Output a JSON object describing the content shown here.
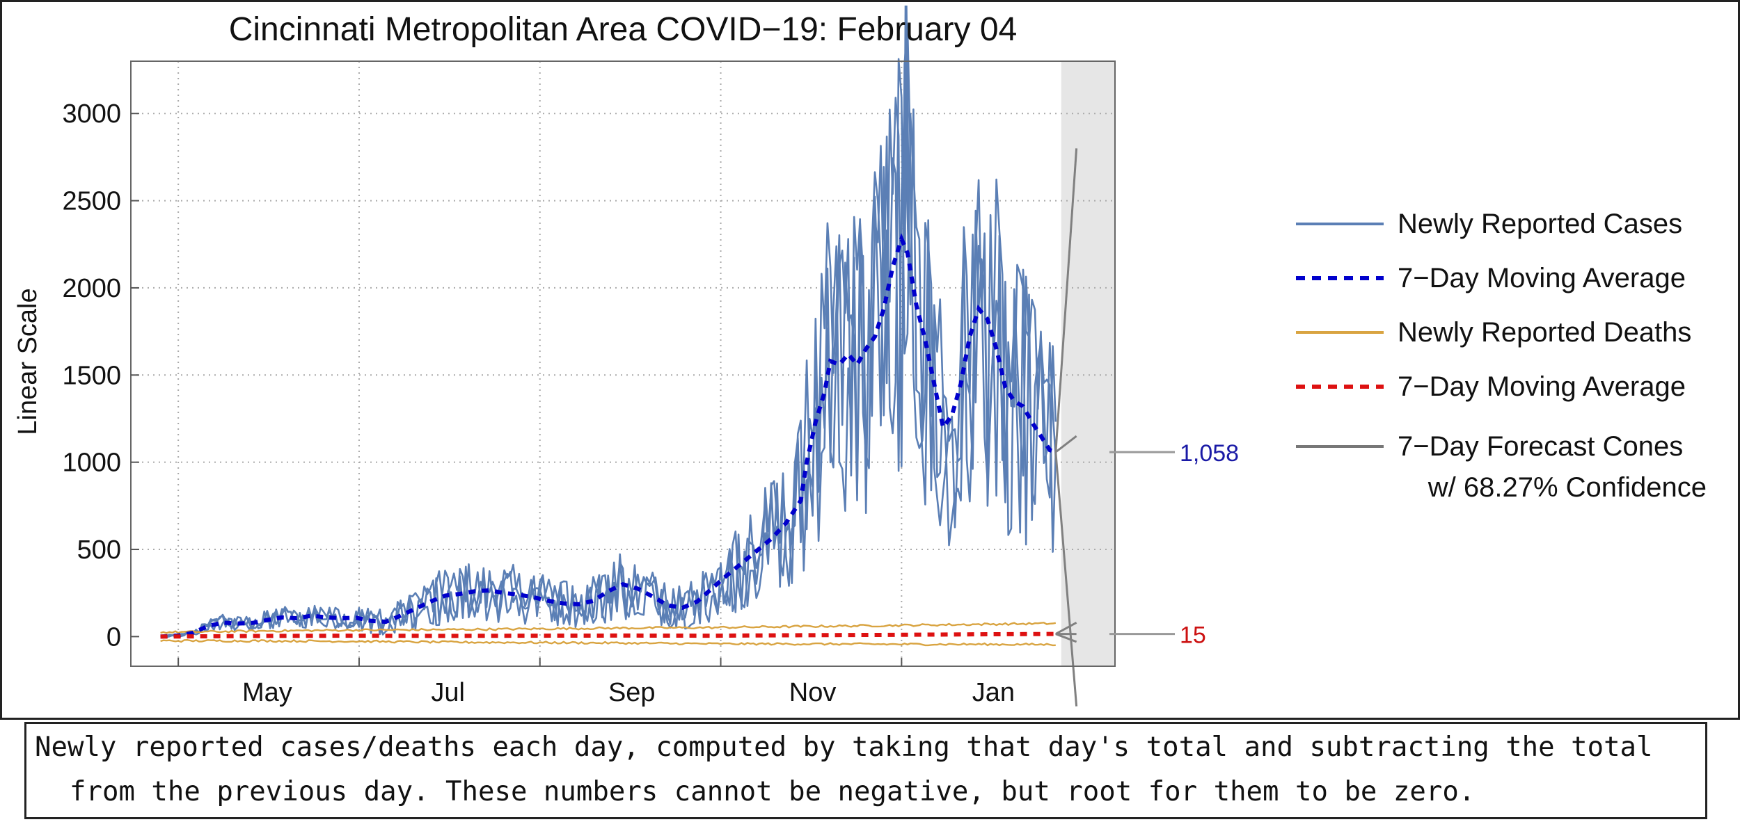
{
  "chart_data": {
    "type": "line",
    "title": "Cincinnati Metropolitan Area COVID−19: February 04",
    "ylabel": "Linear Scale",
    "xlabel": "",
    "ylim": [
      -170,
      3300
    ],
    "yticks": [
      0,
      500,
      1000,
      1500,
      2000,
      2500,
      3000
    ],
    "x_range_days": [
      -16,
      316
    ],
    "month_ticks": [
      {
        "label": "May",
        "day": 30
      },
      {
        "label": "Jul",
        "day": 91
      },
      {
        "label": "Sep",
        "day": 153
      },
      {
        "label": "Nov",
        "day": 214
      },
      {
        "label": "Jan",
        "day": 275
      }
    ],
    "minor_ticks_days": [
      0,
      61,
      122,
      183,
      244
    ],
    "grid": true,
    "series": [
      {
        "name": "Newly Reported Cases",
        "color": "#5b7fb5",
        "band_color": "#dbe4f0",
        "points": [
          [
            -6,
            0
          ],
          [
            0,
            8
          ],
          [
            5,
            25
          ],
          [
            8,
            60
          ],
          [
            12,
            110
          ],
          [
            15,
            95
          ],
          [
            18,
            70
          ],
          [
            22,
            100
          ],
          [
            25,
            75
          ],
          [
            30,
            110
          ],
          [
            35,
            120
          ],
          [
            40,
            95
          ],
          [
            45,
            130
          ],
          [
            50,
            110
          ],
          [
            55,
            100
          ],
          [
            60,
            120
          ],
          [
            65,
            95
          ],
          [
            70,
            85
          ],
          [
            75,
            130
          ],
          [
            80,
            170
          ],
          [
            85,
            200
          ],
          [
            90,
            230
          ],
          [
            95,
            245
          ],
          [
            100,
            270
          ],
          [
            105,
            290
          ],
          [
            110,
            260
          ],
          [
            115,
            250
          ],
          [
            120,
            230
          ],
          [
            125,
            200
          ],
          [
            130,
            190
          ],
          [
            135,
            180
          ],
          [
            140,
            200
          ],
          [
            145,
            250
          ],
          [
            150,
            320
          ],
          [
            155,
            290
          ],
          [
            160,
            240
          ],
          [
            165,
            180
          ],
          [
            170,
            160
          ],
          [
            175,
            190
          ],
          [
            180,
            260
          ],
          [
            185,
            340
          ],
          [
            190,
            420
          ],
          [
            195,
            500
          ],
          [
            200,
            600
          ],
          [
            205,
            700
          ],
          [
            210,
            820
          ],
          [
            212,
            1000
          ],
          [
            215,
            1250
          ],
          [
            218,
            1450
          ],
          [
            220,
            1600
          ],
          [
            223,
            1550
          ],
          [
            226,
            1650
          ],
          [
            229,
            1500
          ],
          [
            232,
            1620
          ],
          [
            235,
            1700
          ],
          [
            238,
            1850
          ],
          [
            241,
            2100
          ],
          [
            244,
            2280
          ],
          [
            246,
            2200
          ],
          [
            249,
            1900
          ],
          [
            252,
            1750
          ],
          [
            255,
            1500
          ],
          [
            258,
            1200
          ],
          [
            261,
            1280
          ],
          [
            264,
            1450
          ],
          [
            267,
            1700
          ],
          [
            270,
            1880
          ],
          [
            273,
            1800
          ],
          [
            276,
            1650
          ],
          [
            279,
            1450
          ],
          [
            282,
            1350
          ],
          [
            285,
            1300
          ],
          [
            288,
            1200
          ],
          [
            291,
            1100
          ],
          [
            294,
            900
          ],
          [
            296,
            1058
          ]
        ]
      },
      {
        "name": "7−Day Moving Average",
        "color": "#0000cc",
        "style": "dashed",
        "points": [
          [
            -6,
            0
          ],
          [
            0,
            6
          ],
          [
            5,
            22
          ],
          [
            10,
            60
          ],
          [
            15,
            80
          ],
          [
            20,
            75
          ],
          [
            25,
            78
          ],
          [
            30,
            95
          ],
          [
            35,
            110
          ],
          [
            40,
            105
          ],
          [
            45,
            120
          ],
          [
            50,
            110
          ],
          [
            55,
            105
          ],
          [
            60,
            108
          ],
          [
            65,
            90
          ],
          [
            70,
            85
          ],
          [
            75,
            120
          ],
          [
            80,
            160
          ],
          [
            85,
            200
          ],
          [
            90,
            235
          ],
          [
            95,
            245
          ],
          [
            100,
            260
          ],
          [
            105,
            265
          ],
          [
            110,
            250
          ],
          [
            115,
            240
          ],
          [
            120,
            225
          ],
          [
            125,
            205
          ],
          [
            130,
            190
          ],
          [
            135,
            185
          ],
          [
            140,
            205
          ],
          [
            145,
            260
          ],
          [
            150,
            300
          ],
          [
            155,
            275
          ],
          [
            160,
            230
          ],
          [
            165,
            180
          ],
          [
            170,
            165
          ],
          [
            175,
            200
          ],
          [
            180,
            275
          ],
          [
            185,
            350
          ],
          [
            190,
            420
          ],
          [
            195,
            490
          ],
          [
            200,
            560
          ],
          [
            205,
            650
          ],
          [
            210,
            780
          ],
          [
            212,
            1000
          ],
          [
            215,
            1230
          ],
          [
            218,
            1400
          ],
          [
            220,
            1580
          ],
          [
            223,
            1560
          ],
          [
            226,
            1620
          ],
          [
            229,
            1560
          ],
          [
            232,
            1650
          ],
          [
            235,
            1720
          ],
          [
            238,
            1880
          ],
          [
            241,
            2120
          ],
          [
            244,
            2280
          ],
          [
            246,
            2200
          ],
          [
            249,
            1900
          ],
          [
            252,
            1700
          ],
          [
            255,
            1450
          ],
          [
            258,
            1200
          ],
          [
            261,
            1270
          ],
          [
            264,
            1450
          ],
          [
            267,
            1720
          ],
          [
            270,
            1880
          ],
          [
            273,
            1820
          ],
          [
            276,
            1650
          ],
          [
            279,
            1430
          ],
          [
            282,
            1350
          ],
          [
            285,
            1320
          ],
          [
            288,
            1230
          ],
          [
            291,
            1150
          ],
          [
            294,
            1070
          ],
          [
            296,
            1058
          ]
        ]
      },
      {
        "name": "Newly Reported Deaths",
        "color": "#d9a441",
        "band_color": "#f6e7c1",
        "points": [
          [
            -6,
            0
          ],
          [
            30,
            4
          ],
          [
            60,
            6
          ],
          [
            90,
            4
          ],
          [
            120,
            5
          ],
          [
            150,
            6
          ],
          [
            180,
            5
          ],
          [
            210,
            8
          ],
          [
            240,
            10
          ],
          [
            270,
            14
          ],
          [
            296,
            15
          ]
        ]
      },
      {
        "name": "7−Day Moving Average",
        "color": "#dd1111",
        "style": "dashed",
        "points": [
          [
            -6,
            0
          ],
          [
            30,
            4
          ],
          [
            60,
            5
          ],
          [
            90,
            4
          ],
          [
            120,
            5
          ],
          [
            150,
            6
          ],
          [
            180,
            5
          ],
          [
            210,
            8
          ],
          [
            240,
            10
          ],
          [
            270,
            13
          ],
          [
            296,
            15
          ]
        ]
      },
      {
        "name": "7−Day Forecast Cones",
        "color": "#808080",
        "cases_cone": {
          "start_day": 296,
          "end_day": 303,
          "center": [
            1058,
            1150
          ],
          "upper": [
            2050,
            2800
          ],
          "lower": [
            200,
            -400
          ]
        },
        "deaths_cone": {
          "start_day": 296,
          "end_day": 303,
          "center": [
            15,
            15
          ],
          "upper": [
            60,
            80
          ],
          "lower": [
            -25,
            -30
          ]
        }
      }
    ],
    "annotations": [
      {
        "text": "1,058",
        "value": 1058,
        "color": "#1a1aa6"
      },
      {
        "text": "15",
        "value": 15,
        "color": "#cc1111"
      }
    ],
    "legend": {
      "placement": "right",
      "entries": [
        {
          "label": "Newly Reported Cases",
          "color": "#5b7fb5",
          "style": "solid"
        },
        {
          "label": "7−Day Moving Average",
          "color": "#0000cc",
          "style": "dashed"
        },
        {
          "label": "Newly Reported Deaths",
          "color": "#d9a441",
          "style": "solid"
        },
        {
          "label": "7−Day Moving Average",
          "color": "#dd1111",
          "style": "dashed"
        },
        {
          "label": "7−Day Forecast Cones",
          "label2": "w/ 68.27% Confidence",
          "color": "#777777",
          "style": "solid"
        }
      ]
    }
  },
  "caption": {
    "line1": "Newly reported cases/deaths each day, computed by taking that day's total and subtracting the total",
    "line2": "from the previous day. These numbers cannot be negative, but root for them to be zero."
  }
}
